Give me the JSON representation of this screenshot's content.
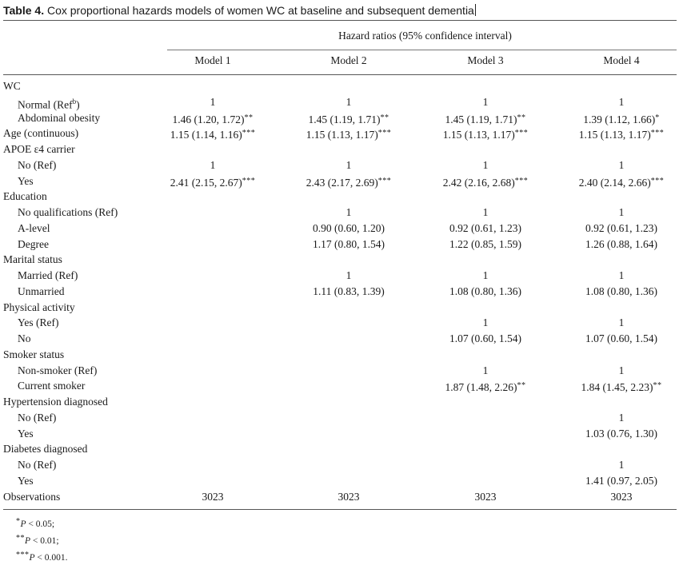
{
  "caption": {
    "label": "Table 4.",
    "title": "Cox proportional hazards models of women WC at baseline and subsequent dementia"
  },
  "table": {
    "super_header": "Hazard ratios (95% confidence interval)",
    "columns": [
      "Model 1",
      "Model 2",
      "Model 3",
      "Model 4"
    ],
    "rows": [
      {
        "label": "WC",
        "indent": false,
        "cells": [
          "",
          "",
          "",
          ""
        ],
        "stars": [
          "",
          "",
          "",
          ""
        ]
      },
      {
        "label": "Normal (Ref",
        "label_sup": "b",
        "label_end": ")",
        "indent": true,
        "cells": [
          "1",
          "1",
          "1",
          "1"
        ],
        "stars": [
          "",
          "",
          "",
          ""
        ]
      },
      {
        "label": "Abdominal obesity",
        "indent": true,
        "cells": [
          "1.46 (1.20, 1.72)",
          "1.45 (1.19, 1.71)",
          "1.45 (1.19, 1.71)",
          "1.39 (1.12, 1.66)"
        ],
        "stars": [
          "**",
          "**",
          "**",
          "*"
        ]
      },
      {
        "label": "Age (continuous)",
        "indent": false,
        "cells": [
          "1.15 (1.14, 1.16)",
          "1.15 (1.13, 1.17)",
          "1.15 (1.13, 1.17)",
          "1.15 (1.13, 1.17)"
        ],
        "stars": [
          "***",
          "***",
          "***",
          "***"
        ]
      },
      {
        "label": "APOE ε4 carrier",
        "indent": false,
        "cells": [
          "",
          "",
          "",
          ""
        ],
        "stars": [
          "",
          "",
          "",
          ""
        ]
      },
      {
        "label": "No (Ref)",
        "indent": true,
        "cells": [
          "1",
          "1",
          "1",
          "1"
        ],
        "stars": [
          "",
          "",
          "",
          ""
        ]
      },
      {
        "label": "Yes",
        "indent": true,
        "cells": [
          "2.41 (2.15, 2.67)",
          "2.43 (2.17, 2.69)",
          "2.42 (2.16, 2.68)",
          "2.40 (2.14, 2.66)"
        ],
        "stars": [
          "***",
          "***",
          "***",
          "***"
        ]
      },
      {
        "label": "Education",
        "indent": false,
        "cells": [
          "",
          "",
          "",
          ""
        ],
        "stars": [
          "",
          "",
          "",
          ""
        ]
      },
      {
        "label": "No qualifications (Ref)",
        "indent": true,
        "cells": [
          "",
          "1",
          "1",
          "1"
        ],
        "stars": [
          "",
          "",
          "",
          ""
        ]
      },
      {
        "label": "A-level",
        "indent": true,
        "cells": [
          "",
          "0.90 (0.60, 1.20)",
          "0.92 (0.61, 1.23)",
          "0.92 (0.61, 1.23)"
        ],
        "stars": [
          "",
          "",
          "",
          ""
        ]
      },
      {
        "label": "Degree",
        "indent": true,
        "cells": [
          "",
          "1.17 (0.80, 1.54)",
          "1.22 (0.85, 1.59)",
          "1.26 (0.88, 1.64)"
        ],
        "stars": [
          "",
          "",
          "",
          ""
        ]
      },
      {
        "label": "Marital status",
        "indent": false,
        "cells": [
          "",
          "",
          "",
          ""
        ],
        "stars": [
          "",
          "",
          "",
          ""
        ]
      },
      {
        "label": "Married (Ref)",
        "indent": true,
        "cells": [
          "",
          "1",
          "1",
          "1"
        ],
        "stars": [
          "",
          "",
          "",
          ""
        ]
      },
      {
        "label": "Unmarried",
        "indent": true,
        "cells": [
          "",
          "1.11 (0.83, 1.39)",
          "1.08 (0.80, 1.36)",
          "1.08 (0.80, 1.36)"
        ],
        "stars": [
          "",
          "",
          "",
          ""
        ]
      },
      {
        "label": "Physical activity",
        "indent": false,
        "cells": [
          "",
          "",
          "",
          ""
        ],
        "stars": [
          "",
          "",
          "",
          ""
        ]
      },
      {
        "label": "Yes (Ref)",
        "indent": true,
        "cells": [
          "",
          "",
          "1",
          "1"
        ],
        "stars": [
          "",
          "",
          "",
          ""
        ]
      },
      {
        "label": "No",
        "indent": true,
        "cells": [
          "",
          "",
          "1.07 (0.60, 1.54)",
          "1.07 (0.60, 1.54)"
        ],
        "stars": [
          "",
          "",
          "",
          ""
        ]
      },
      {
        "label": "Smoker status",
        "indent": false,
        "cells": [
          "",
          "",
          "",
          ""
        ],
        "stars": [
          "",
          "",
          "",
          ""
        ]
      },
      {
        "label": "Non-smoker (Ref)",
        "indent": true,
        "cells": [
          "",
          "",
          "1",
          "1"
        ],
        "stars": [
          "",
          "",
          "",
          ""
        ]
      },
      {
        "label": "Current smoker",
        "indent": true,
        "cells": [
          "",
          "",
          "1.87 (1.48, 2.26)",
          "1.84 (1.45, 2.23)"
        ],
        "stars": [
          "",
          "",
          "**",
          "**"
        ]
      },
      {
        "label": "Hypertension diagnosed",
        "indent": false,
        "cells": [
          "",
          "",
          "",
          ""
        ],
        "stars": [
          "",
          "",
          "",
          ""
        ]
      },
      {
        "label": "No (Ref)",
        "indent": true,
        "cells": [
          "",
          "",
          "",
          "1"
        ],
        "stars": [
          "",
          "",
          "",
          ""
        ]
      },
      {
        "label": "Yes",
        "indent": true,
        "cells": [
          "",
          "",
          "",
          "1.03 (0.76, 1.30)"
        ],
        "stars": [
          "",
          "",
          "",
          ""
        ]
      },
      {
        "label": "Diabetes diagnosed",
        "indent": false,
        "cells": [
          "",
          "",
          "",
          ""
        ],
        "stars": [
          "",
          "",
          "",
          ""
        ]
      },
      {
        "label": "No (Ref)",
        "indent": true,
        "cells": [
          "",
          "",
          "",
          "1"
        ],
        "stars": [
          "",
          "",
          "",
          ""
        ]
      },
      {
        "label": "Yes",
        "indent": true,
        "cells": [
          "",
          "",
          "",
          "1.41 (0.97, 2.05)"
        ],
        "stars": [
          "",
          "",
          "",
          ""
        ]
      },
      {
        "label": "Observations",
        "indent": false,
        "cells": [
          "3023",
          "3023",
          "3023",
          "3023"
        ],
        "stars": [
          "",
          "",
          "",
          ""
        ]
      }
    ]
  },
  "footnotes": [
    {
      "stars": "*",
      "p": "P",
      "rest": " < 0.05;"
    },
    {
      "stars": "**",
      "p": "P",
      "rest": " < 0.01;"
    },
    {
      "stars": "***",
      "p": "P",
      "rest": " < 0.001."
    }
  ]
}
